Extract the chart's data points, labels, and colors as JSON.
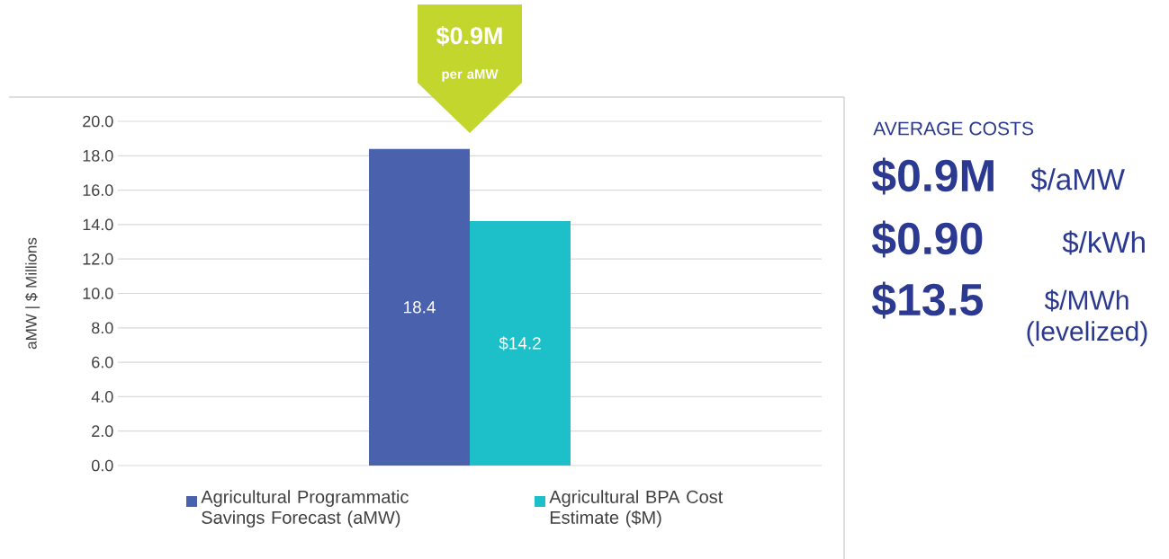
{
  "chart_data": {
    "type": "bar",
    "ylabel": "aMW | $ Millions",
    "categories": [
      null
    ],
    "series": [
      {
        "name": "Agricultural Programmatic Savings Forecast (aMW)",
        "color": "#4a62ad",
        "values": [
          18.4
        ],
        "value_labels": [
          "18.4"
        ]
      },
      {
        "name": "Agricultural BPA Cost Estimate ($M)",
        "color": "#1dbfc9",
        "values": [
          14.2
        ],
        "value_labels": [
          "$14.2"
        ]
      }
    ],
    "ylim": [
      0,
      20
    ],
    "yticks": [
      {
        "value": 0,
        "label": "0.0"
      },
      {
        "value": 2,
        "label": "2.0"
      },
      {
        "value": 4,
        "label": "4.0"
      },
      {
        "value": 6,
        "label": "6.0"
      },
      {
        "value": 8,
        "label": "8.0"
      },
      {
        "value": 10,
        "label": "10.0"
      },
      {
        "value": 12,
        "label": "12.0"
      },
      {
        "value": 14,
        "label": "14.0"
      },
      {
        "value": 16,
        "label": "16.0"
      },
      {
        "value": 18,
        "label": "18.0"
      },
      {
        "value": 20,
        "label": "20.0"
      }
    ],
    "grid": "y",
    "legend": "bottom",
    "annotations": [
      "$0.9M",
      "per aMW",
      "AVERAGE COSTS",
      "$0.9M",
      "$/aMW",
      "$0.90",
      "$/kWh",
      "$13.5",
      "$/MWh (levelized)"
    ]
  }
}
